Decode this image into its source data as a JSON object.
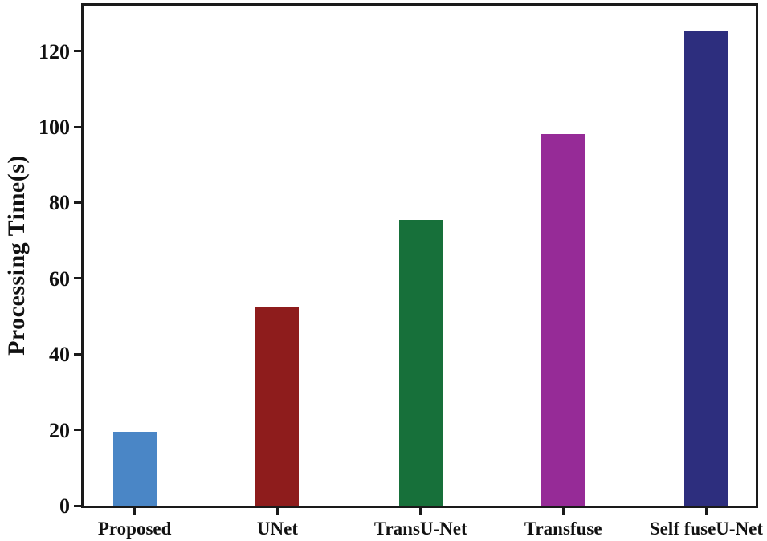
{
  "chart_data": {
    "type": "bar",
    "title": "",
    "xlabel": "",
    "ylabel": "Processing Time(s)",
    "categories": [
      "Proposed",
      "UNet",
      "TransU-Net",
      "Transfuse",
      "Self fuseU-Net"
    ],
    "values": [
      19.5,
      52.5,
      75.5,
      98,
      125.5
    ],
    "bar_colors": [
      "#4a86c6",
      "#8e1c1c",
      "#17703a",
      "#962b97",
      "#2d2e7e"
    ],
    "y_ticks": [
      0,
      20,
      40,
      60,
      80,
      100,
      120
    ],
    "ylim": [
      0,
      132
    ],
    "grid": false,
    "legend": "none",
    "axis_color": "#1a1a1a",
    "tick_label_color": "#111111",
    "background_color": "#ffffff"
  }
}
